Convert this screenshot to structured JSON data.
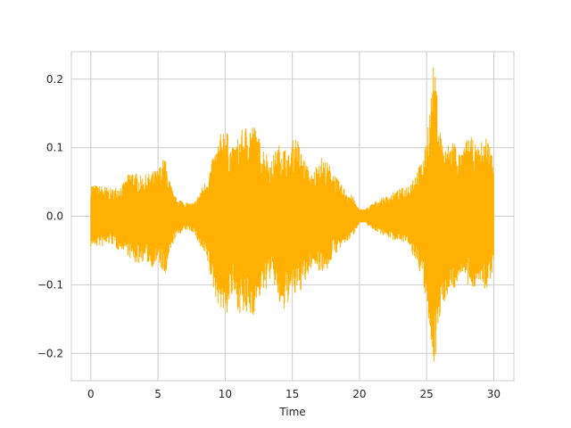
{
  "chart_data": {
    "type": "area",
    "xlabel": "Time",
    "ylabel": "",
    "xlim": [
      -1.45,
      31.5
    ],
    "ylim": [
      -0.24,
      0.24
    ],
    "xticks": [
      0,
      5,
      10,
      15,
      20,
      25,
      30
    ],
    "yticks": [
      0.2,
      0.1,
      0.0,
      -0.1,
      -0.2
    ],
    "xtick_labels": [
      "0",
      "5",
      "10",
      "15",
      "20",
      "25",
      "30"
    ],
    "ytick_labels": [
      "0.2",
      "0.1",
      "0.0",
      "−0.1",
      "−0.2"
    ],
    "grid": true,
    "series": [
      {
        "color": "#FFB000",
        "envelope": {
          "time": [
            0,
            0.5,
            1,
            1.5,
            2,
            2.5,
            3,
            3.3,
            3.6,
            4,
            4.5,
            5,
            5.3,
            5.5,
            5.8,
            6.2,
            6.7,
            7.2,
            7.7,
            8.2,
            8.7,
            9,
            9.3,
            9.5,
            9.8,
            10,
            10.3,
            10.6,
            11,
            11.4,
            11.8,
            12,
            12.3,
            12.6,
            13,
            13.4,
            13.8,
            14.2,
            14.5,
            14.8,
            15,
            15.3,
            15.6,
            16,
            16.5,
            17,
            17.3,
            17.6,
            18,
            18.5,
            19,
            19.5,
            20,
            20.5,
            21,
            21.5,
            22,
            22.5,
            23,
            23.5,
            24,
            24.3,
            24.6,
            24.9,
            25.1,
            25.3,
            25.5,
            25.7,
            25.9,
            26.1,
            26.4,
            26.7,
            27,
            27.3,
            27.6,
            27.9,
            28.2,
            28.5,
            28.8,
            29.1,
            29.4,
            29.7,
            30
          ],
          "max": [
            0.05,
            0.045,
            0.045,
            0.04,
            0.045,
            0.05,
            0.07,
            0.065,
            0.06,
            0.06,
            0.065,
            0.07,
            0.08,
            0.09,
            0.06,
            0.03,
            0.025,
            0.02,
            0.02,
            0.04,
            0.06,
            0.08,
            0.1,
            0.11,
            0.13,
            0.14,
            0.11,
            0.1,
            0.12,
            0.13,
            0.14,
            0.14,
            0.13,
            0.11,
            0.1,
            0.08,
            0.1,
            0.11,
            0.1,
            0.09,
            0.11,
            0.12,
            0.1,
            0.08,
            0.06,
            0.09,
            0.085,
            0.08,
            0.07,
            0.05,
            0.04,
            0.03,
            0.01,
            0.012,
            0.02,
            0.025,
            0.03,
            0.035,
            0.04,
            0.045,
            0.06,
            0.07,
            0.08,
            0.1,
            0.14,
            0.17,
            0.22,
            0.2,
            0.15,
            0.12,
            0.1,
            0.11,
            0.12,
            0.1,
            0.09,
            0.11,
            0.12,
            0.11,
            0.1,
            0.11,
            0.12,
            0.11,
            0.08
          ],
          "min": [
            -0.045,
            -0.045,
            -0.045,
            -0.04,
            -0.05,
            -0.05,
            -0.065,
            -0.07,
            -0.07,
            -0.065,
            -0.075,
            -0.07,
            -0.08,
            -0.1,
            -0.065,
            -0.035,
            -0.025,
            -0.02,
            -0.025,
            -0.05,
            -0.07,
            -0.1,
            -0.12,
            -0.13,
            -0.14,
            -0.155,
            -0.13,
            -0.12,
            -0.14,
            -0.15,
            -0.15,
            -0.15,
            -0.135,
            -0.12,
            -0.11,
            -0.09,
            -0.11,
            -0.15,
            -0.14,
            -0.12,
            -0.12,
            -0.12,
            -0.11,
            -0.1,
            -0.07,
            -0.08,
            -0.08,
            -0.08,
            -0.06,
            -0.05,
            -0.04,
            -0.03,
            -0.01,
            -0.012,
            -0.02,
            -0.025,
            -0.03,
            -0.035,
            -0.035,
            -0.04,
            -0.06,
            -0.07,
            -0.09,
            -0.12,
            -0.16,
            -0.19,
            -0.22,
            -0.2,
            -0.17,
            -0.14,
            -0.12,
            -0.11,
            -0.11,
            -0.1,
            -0.08,
            -0.1,
            -0.11,
            -0.11,
            -0.09,
            -0.11,
            -0.11,
            -0.1,
            -0.07
          ]
        }
      }
    ]
  }
}
